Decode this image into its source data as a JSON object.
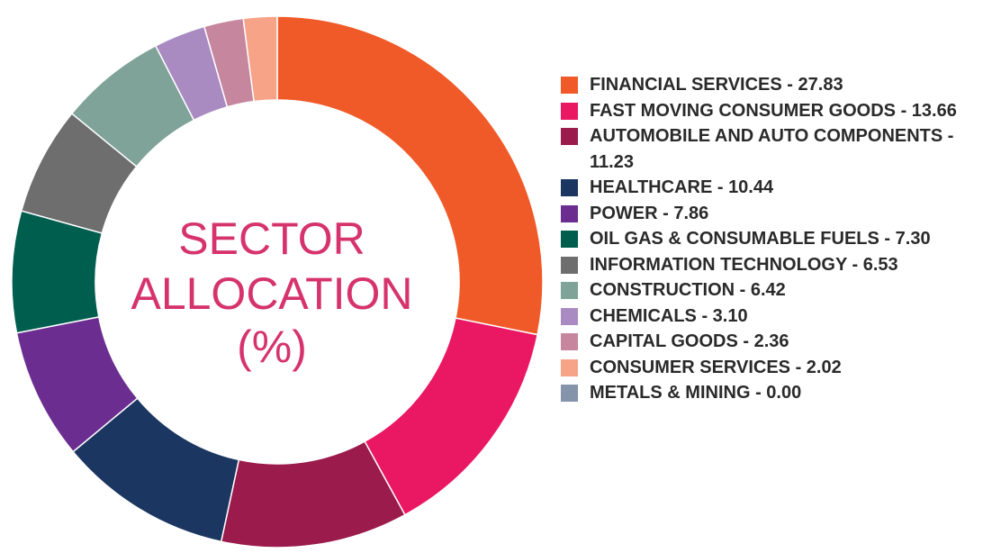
{
  "chart_data": {
    "type": "pie",
    "variant": "donut",
    "title": "SECTOR ALLOCATION (%)",
    "title_lines": [
      "SECTOR",
      "ALLOCATION",
      "(%)"
    ],
    "legend_position": "right",
    "slices": [
      {
        "label": "FINANCIAL SERVICES - 27.83",
        "name": "FINANCIAL SERVICES",
        "value": 27.83,
        "color": "#f05a28"
      },
      {
        "label": "FAST MOVING CONSUMER GOODS - 13.66",
        "name": "FAST MOVING CONSUMER GOODS",
        "value": 13.66,
        "color": "#ea1763"
      },
      {
        "label": "AUTOMOBILE AND AUTO COMPONENTS - 11.23",
        "name": "AUTOMOBILE AND AUTO COMPONENTS",
        "value": 11.23,
        "color": "#9b1b4c"
      },
      {
        "label": "HEALTHCARE - 10.44",
        "name": "HEALTHCARE",
        "value": 10.44,
        "color": "#1b3660"
      },
      {
        "label": "POWER - 7.86",
        "name": "POWER",
        "value": 7.86,
        "color": "#6c2d91"
      },
      {
        "label": "OIL GAS & CONSUMABLE FUELS - 7.30",
        "name": "OIL GAS & CONSUMABLE FUELS",
        "value": 7.3,
        "color": "#005e4e"
      },
      {
        "label": "INFORMATION TECHNOLOGY - 6.53",
        "name": "INFORMATION TECHNOLOGY",
        "value": 6.53,
        "color": "#6e6e6e"
      },
      {
        "label": "CONSTRUCTION - 6.42",
        "name": "CONSTRUCTION",
        "value": 6.42,
        "color": "#7fa398"
      },
      {
        "label": "CHEMICALS - 3.10",
        "name": "CHEMICALS",
        "value": 3.1,
        "color": "#a98bc1"
      },
      {
        "label": "CAPITAL GOODS - 2.36",
        "name": "CAPITAL GOODS",
        "value": 2.36,
        "color": "#c6869d"
      },
      {
        "label": "CONSUMER SERVICES - 2.02",
        "name": "CONSUMER SERVICES",
        "value": 2.02,
        "color": "#f6a388"
      },
      {
        "label": "METALS & MINING - 0.00",
        "name": "METALS & MINING",
        "value": 0.0,
        "color": "#8593ab"
      }
    ]
  }
}
